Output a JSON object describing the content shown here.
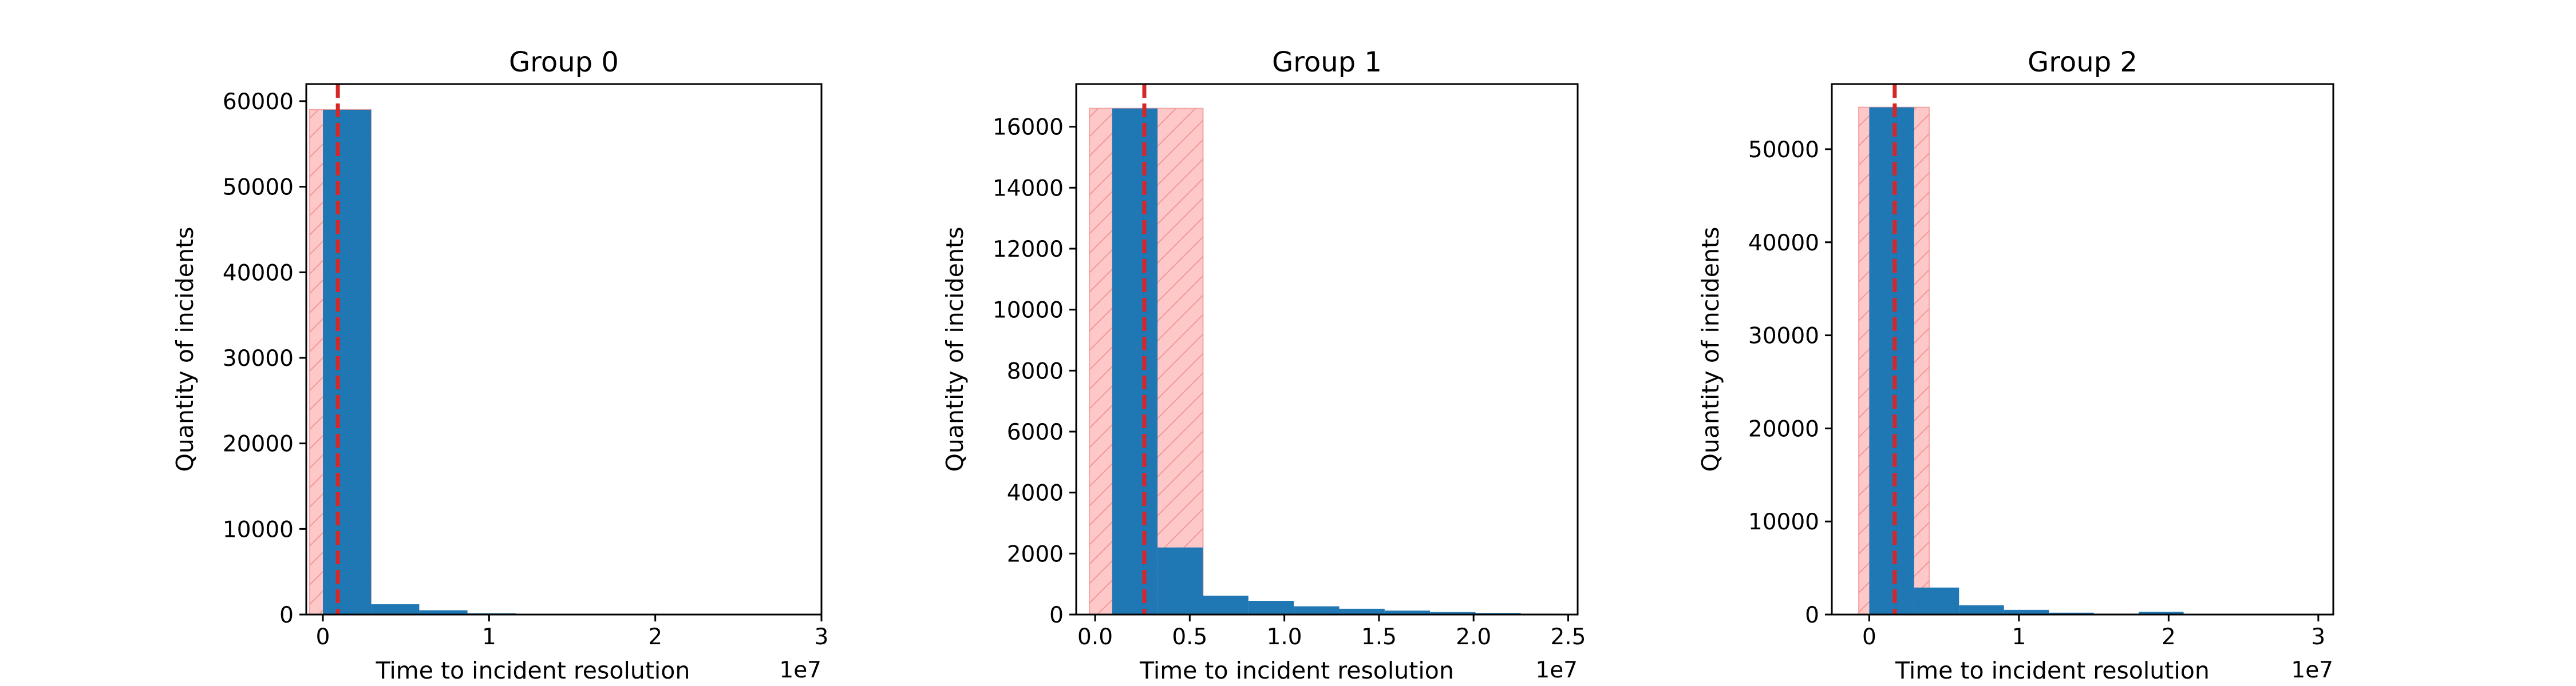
{
  "chart_data": [
    {
      "type": "bar",
      "title": "Group 0",
      "xlabel": "Time to incident resolution",
      "ylabel": "Quantity of incidents",
      "x_offset_label": "1e7",
      "xlim": [
        -0.1,
        3.0
      ],
      "ylim": [
        0,
        62000
      ],
      "xticks": [
        0,
        1,
        2,
        3
      ],
      "xtick_labels": [
        "0",
        "1",
        "2",
        "3"
      ],
      "yticks": [
        0,
        10000,
        20000,
        30000,
        40000,
        50000,
        60000
      ],
      "ytick_labels": [
        "0",
        "10000",
        "20000",
        "30000",
        "40000",
        "50000",
        "60000"
      ],
      "bin_edges": [
        0,
        0.29,
        0.58,
        0.87,
        1.16,
        1.45,
        1.74,
        2.03,
        2.32,
        2.61,
        2.9
      ],
      "values": [
        59000,
        1200,
        500,
        150,
        80,
        40,
        20,
        10,
        5,
        5
      ],
      "median_line": 0.09,
      "shaded_band": [
        -0.08,
        0.29
      ]
    },
    {
      "type": "bar",
      "title": "Group 1",
      "xlabel": "Time to incident resolution",
      "ylabel": "Quantity of incidents",
      "x_offset_label": "1e7",
      "xlim": [
        -0.1,
        2.55
      ],
      "ylim": [
        0,
        17400
      ],
      "xticks": [
        0,
        0.5,
        1.0,
        1.5,
        2.0,
        2.5
      ],
      "xtick_labels": [
        "0.0",
        "0.5",
        "1.0",
        "1.5",
        "2.0",
        "2.5"
      ],
      "yticks": [
        0,
        2000,
        4000,
        6000,
        8000,
        10000,
        12000,
        14000,
        16000
      ],
      "ytick_labels": [
        "0",
        "2000",
        "4000",
        "6000",
        "8000",
        "10000",
        "12000",
        "14000",
        "16000"
      ],
      "bin_edges": [
        0.09,
        0.33,
        0.57,
        0.81,
        1.05,
        1.29,
        1.53,
        1.77,
        2.01,
        2.25,
        2.45
      ],
      "values": [
        16600,
        2200,
        620,
        450,
        270,
        190,
        130,
        80,
        50,
        30
      ],
      "median_line": 0.26,
      "shaded_band": [
        -0.03,
        0.57
      ]
    },
    {
      "type": "bar",
      "title": "Group 2",
      "xlabel": "Time to incident resolution",
      "ylabel": "Quantity of incidents",
      "x_offset_label": "1e7",
      "xlim": [
        -0.25,
        3.1
      ],
      "ylim": [
        0,
        57000
      ],
      "xticks": [
        0,
        1,
        2,
        3
      ],
      "xtick_labels": [
        "0",
        "1",
        "2",
        "3"
      ],
      "yticks": [
        0,
        10000,
        20000,
        30000,
        40000,
        50000
      ],
      "ytick_labels": [
        "0",
        "10000",
        "20000",
        "30000",
        "40000",
        "50000"
      ],
      "bin_edges": [
        0.0,
        0.3,
        0.6,
        0.9,
        1.2,
        1.5,
        1.8,
        2.1,
        2.4,
        2.7,
        3.0
      ],
      "values": [
        54500,
        2900,
        1000,
        500,
        200,
        100,
        300,
        50,
        20,
        10
      ],
      "median_line": 0.17,
      "shaded_band": [
        -0.07,
        0.4
      ]
    }
  ]
}
